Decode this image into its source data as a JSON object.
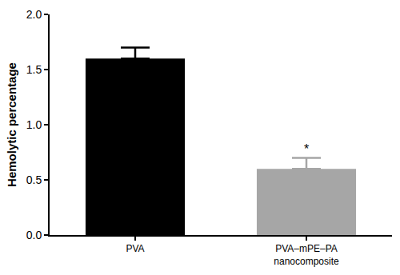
{
  "chart_data": {
    "type": "bar",
    "categories": [
      "PVA",
      "PVA–mPE–PA nanocomposite"
    ],
    "values": [
      1.6,
      0.6
    ],
    "error": [
      0.1,
      0.1
    ],
    "colors": [
      "#000000",
      "#a6a6a6"
    ],
    "y_label": "Hemolytic percentage",
    "ylim": [
      0,
      2.0
    ],
    "yticks": [
      {
        "value": 0,
        "label": "0.0"
      },
      {
        "value": 0.5,
        "label": "0.5"
      },
      {
        "value": 1.0,
        "label": "1.0"
      },
      {
        "value": 1.5,
        "label": "1.5"
      },
      {
        "value": 2.0,
        "label": "2.0"
      }
    ],
    "grid": false,
    "annotations": [
      {
        "text": "*",
        "category": "PVA–mPE–PA nanocomposite"
      }
    ]
  }
}
